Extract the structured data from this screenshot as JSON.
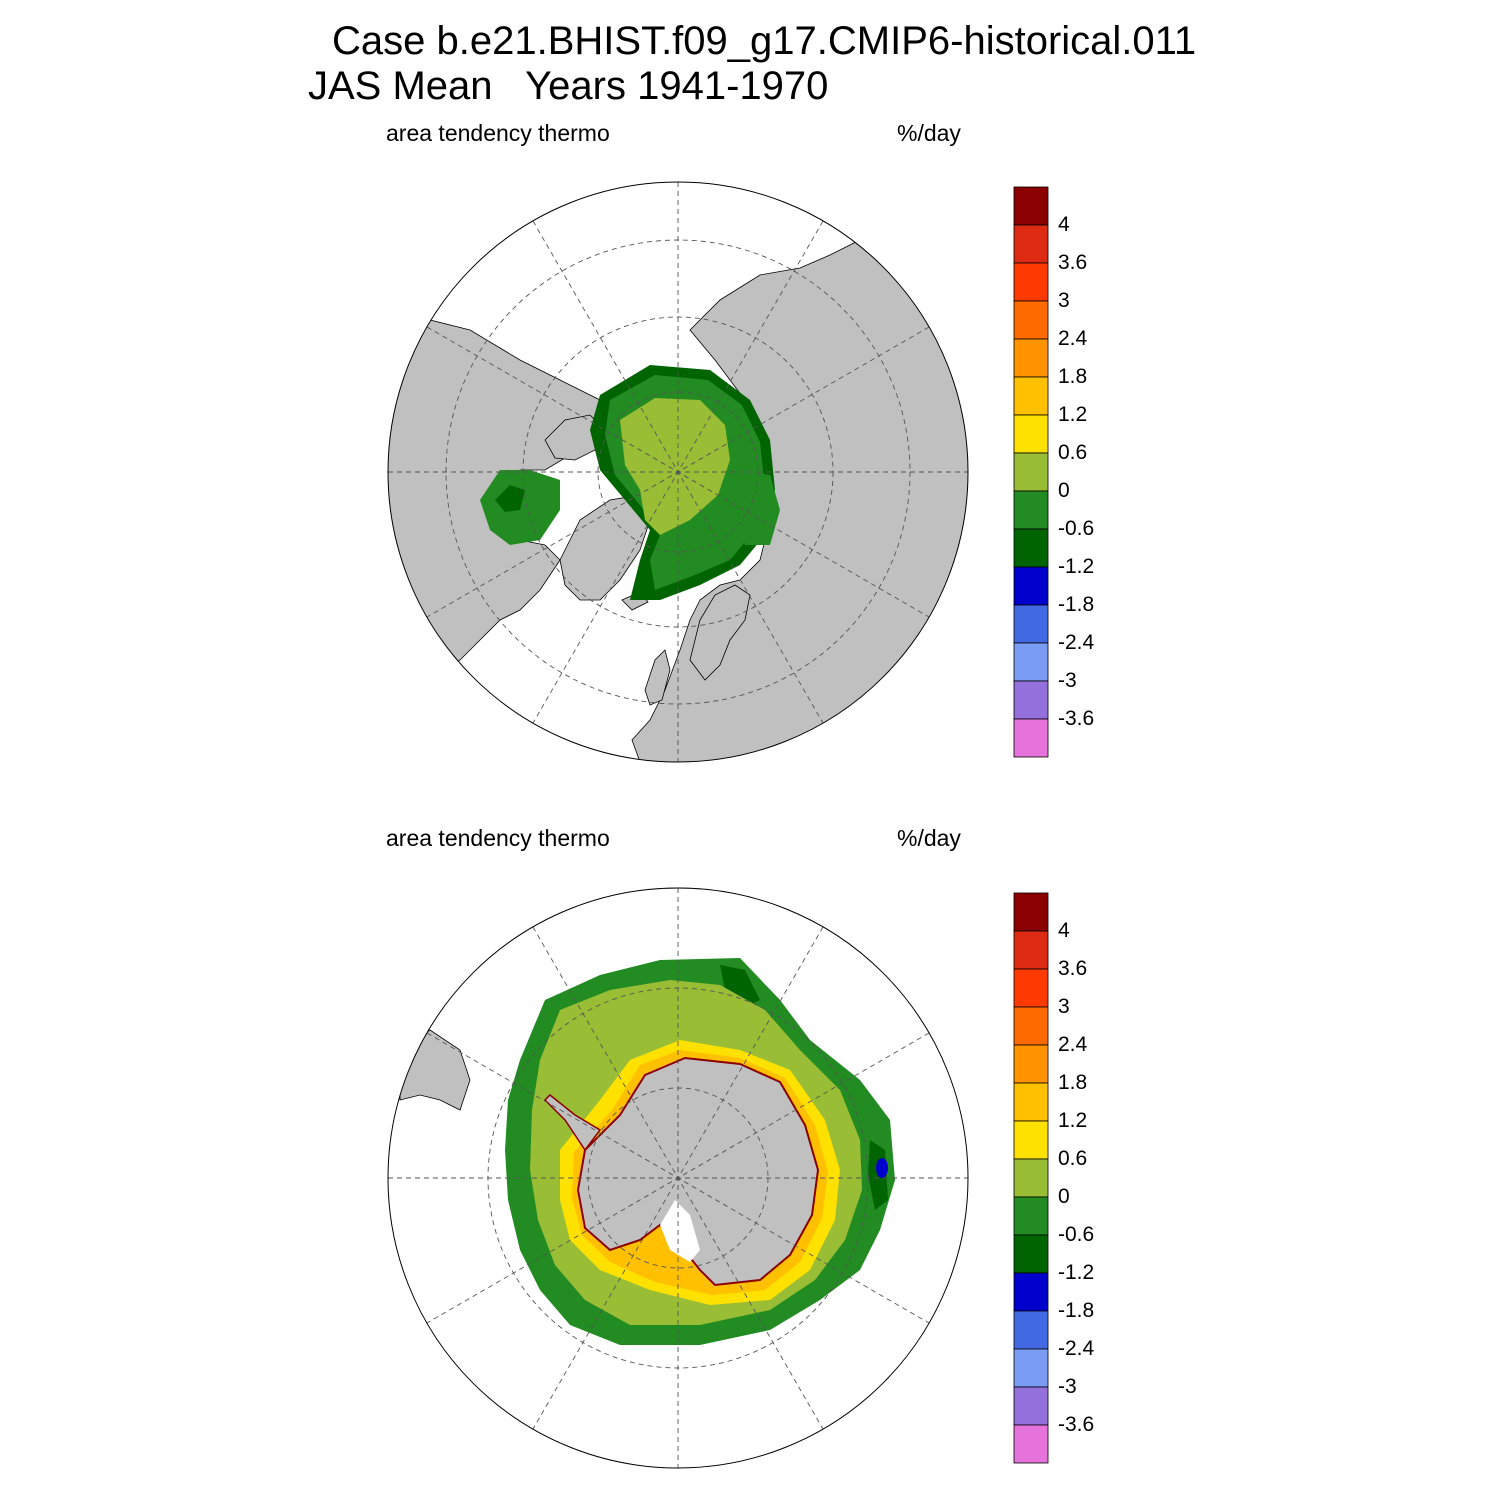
{
  "title": {
    "line1": "Case b.e21.BHIST.f09_g17.CMIP6-historical.011",
    "line2": "JAS Mean   Years 1941-1970"
  },
  "panels": [
    {
      "variable": "area tendency thermo",
      "units": "%/day",
      "hemisphere": "north"
    },
    {
      "variable": "area tendency thermo",
      "units": "%/day",
      "hemisphere": "south"
    }
  ],
  "colorbar": {
    "labels": [
      "4",
      "3.6",
      "3",
      "2.4",
      "1.8",
      "1.2",
      "0.6",
      "0",
      "-0.6",
      "-1.2",
      "-1.8",
      "-2.4",
      "-3",
      "-3.6"
    ],
    "colors": [
      "#8b0000",
      "#dd2a12",
      "#ff3a00",
      "#ff6a00",
      "#ff9400",
      "#ffc000",
      "#ffe100",
      "#9abd36",
      "#228b22",
      "#006400",
      "#0000cd",
      "#4169e1",
      "#7b9cf4",
      "#9370db",
      "#e673dc"
    ]
  },
  "style": {
    "land": "#c0c0c0",
    "ocean": "#ffffff",
    "grid": "#555555"
  }
}
